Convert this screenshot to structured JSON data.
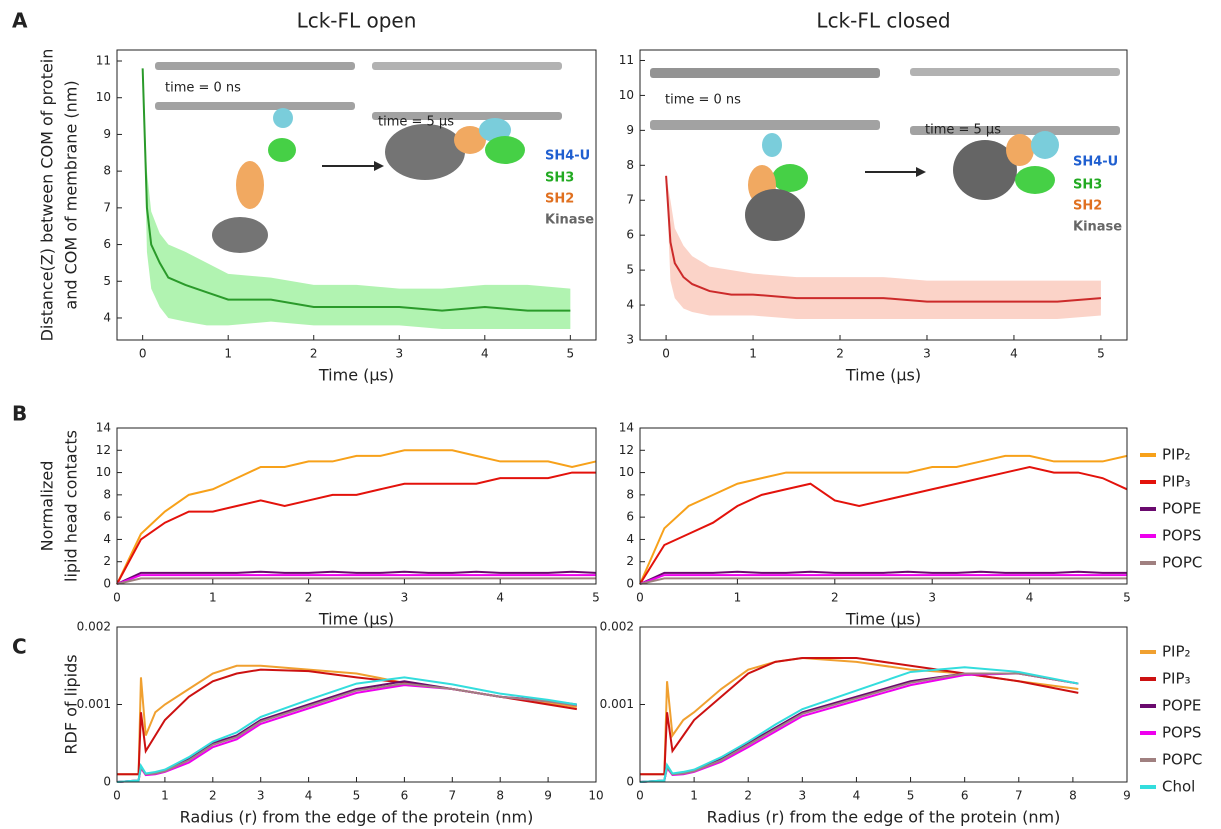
{
  "panel_labels": [
    "A",
    "B",
    "C"
  ],
  "chart_data": [
    {
      "type": "line",
      "title": "Lck-FL open",
      "xlabel": "Time (μs)",
      "ylabel": [
        "Distance(Z) between COM of protein",
        "and COM of membrane (nm)"
      ],
      "xlim": [
        -0.3,
        5.3
      ],
      "xticks": [
        0,
        1,
        2,
        3,
        4,
        5
      ],
      "ylim": [
        3.4,
        11.3
      ],
      "yticks": [
        4,
        5,
        6,
        7,
        8,
        9,
        10,
        11
      ],
      "x": [
        0,
        0.05,
        0.1,
        0.2,
        0.3,
        0.5,
        0.75,
        1,
        1.5,
        2,
        2.5,
        3,
        3.5,
        4,
        4.5,
        5
      ],
      "series": [
        {
          "color": "#2a9a2a",
          "band_color": "#90ee90",
          "values": [
            10.8,
            7.0,
            6.0,
            5.5,
            5.1,
            4.9,
            4.7,
            4.5,
            4.5,
            4.3,
            4.3,
            4.3,
            4.2,
            4.3,
            4.2,
            4.2
          ],
          "lower": [
            10.8,
            5.8,
            4.8,
            4.3,
            4.0,
            3.9,
            3.8,
            3.8,
            3.9,
            3.8,
            3.8,
            3.8,
            3.7,
            3.7,
            3.7,
            3.7
          ],
          "upper": [
            10.8,
            8.0,
            6.9,
            6.3,
            6.0,
            5.8,
            5.5,
            5.2,
            5.1,
            4.9,
            4.9,
            4.8,
            4.8,
            4.9,
            4.9,
            4.8
          ]
        }
      ],
      "annotations": [
        {
          "text": "time = 0 ns",
          "color": "#222"
        },
        {
          "text": "time = 5 μs",
          "color": "#222"
        },
        {
          "text": "SH4-U",
          "color": "#1f5fd0"
        },
        {
          "text": "SH3",
          "color": "#22aa22"
        },
        {
          "text": "SH2",
          "color": "#e07020"
        },
        {
          "text": "Kinase",
          "color": "#666666"
        }
      ]
    },
    {
      "type": "line",
      "title": "Lck-FL closed",
      "xlabel": "Time (μs)",
      "xlim": [
        -0.3,
        5.3
      ],
      "xticks": [
        0,
        1,
        2,
        3,
        4,
        5
      ],
      "ylim": [
        3,
        11.3
      ],
      "yticks": [
        3,
        4,
        5,
        6,
        7,
        8,
        9,
        10,
        11
      ],
      "x": [
        0,
        0.05,
        0.1,
        0.2,
        0.3,
        0.5,
        0.75,
        1,
        1.5,
        2,
        2.5,
        3,
        3.5,
        4,
        4.5,
        5
      ],
      "series": [
        {
          "color": "#cc2a2a",
          "band_color": "#f9c0b0",
          "values": [
            7.7,
            5.8,
            5.2,
            4.8,
            4.6,
            4.4,
            4.3,
            4.3,
            4.2,
            4.2,
            4.2,
            4.1,
            4.1,
            4.1,
            4.1,
            4.2
          ],
          "lower": [
            7.7,
            4.7,
            4.2,
            3.9,
            3.8,
            3.7,
            3.7,
            3.7,
            3.6,
            3.6,
            3.6,
            3.6,
            3.6,
            3.6,
            3.6,
            3.7
          ],
          "upper": [
            7.7,
            7.0,
            6.2,
            5.7,
            5.4,
            5.1,
            5.0,
            4.9,
            4.8,
            4.8,
            4.8,
            4.7,
            4.7,
            4.7,
            4.7,
            4.7
          ]
        }
      ],
      "annotations": [
        {
          "text": "time = 0 ns",
          "color": "#222"
        },
        {
          "text": "time = 5 μs",
          "color": "#222"
        },
        {
          "text": "SH4-U",
          "color": "#1f5fd0"
        },
        {
          "text": "SH3",
          "color": "#22aa22"
        },
        {
          "text": "SH2",
          "color": "#e07020"
        },
        {
          "text": "Kinase",
          "color": "#666666"
        }
      ]
    },
    {
      "type": "line",
      "xlabel": "Time (μs)",
      "ylabel": [
        "Normalized",
        "lipid head contacts"
      ],
      "xlim": [
        0,
        5
      ],
      "xticks": [
        0,
        1,
        2,
        3,
        4,
        5
      ],
      "ylim": [
        0,
        14
      ],
      "yticks": [
        0,
        2,
        4,
        6,
        8,
        10,
        12,
        14
      ],
      "x": [
        0,
        0.25,
        0.5,
        0.75,
        1,
        1.25,
        1.5,
        1.75,
        2,
        2.25,
        2.5,
        2.75,
        3,
        3.25,
        3.5,
        3.75,
        4,
        4.25,
        4.5,
        4.75,
        5
      ],
      "series": [
        {
          "color": "#f7a11a",
          "values": [
            0,
            4.5,
            6.5,
            8,
            8.5,
            9.5,
            10.5,
            10.5,
            11,
            11,
            11.5,
            11.5,
            12,
            12,
            12,
            11.5,
            11,
            11,
            11,
            10.5,
            11
          ]
        },
        {
          "color": "#e3120b",
          "values": [
            0,
            4,
            5.5,
            6.5,
            6.5,
            7,
            7.5,
            7,
            7.5,
            8,
            8,
            8.5,
            9,
            9,
            9,
            9,
            9.5,
            9.5,
            9.5,
            10,
            10
          ]
        },
        {
          "color": "#6a0a6e",
          "values": [
            0,
            1,
            1,
            1,
            1,
            1,
            1.1,
            1,
            1,
            1.1,
            1,
            1,
            1.1,
            1,
            1,
            1.1,
            1,
            1,
            1,
            1.1,
            1
          ]
        },
        {
          "color": "#ee00ee",
          "values": [
            0,
            0.8,
            0.8,
            0.8,
            0.8,
            0.8,
            0.8,
            0.8,
            0.8,
            0.8,
            0.8,
            0.8,
            0.8,
            0.8,
            0.8,
            0.8,
            0.8,
            0.8,
            0.8,
            0.8,
            0.8
          ]
        },
        {
          "color": "#a08080",
          "values": [
            0,
            0.5,
            0.5,
            0.5,
            0.5,
            0.5,
            0.5,
            0.5,
            0.5,
            0.5,
            0.5,
            0.5,
            0.5,
            0.5,
            0.5,
            0.5,
            0.5,
            0.5,
            0.5,
            0.5,
            0.5
          ]
        }
      ]
    },
    {
      "type": "line",
      "xlabel": "Time (μs)",
      "legend": "right",
      "xlim": [
        0,
        5
      ],
      "xticks": [
        0,
        1,
        2,
        3,
        4,
        5
      ],
      "ylim": [
        0,
        14
      ],
      "yticks": [
        0,
        2,
        4,
        6,
        8,
        10,
        12,
        14
      ],
      "x": [
        0,
        0.25,
        0.5,
        0.75,
        1,
        1.25,
        1.5,
        1.75,
        2,
        2.25,
        2.5,
        2.75,
        3,
        3.25,
        3.5,
        3.75,
        4,
        4.25,
        4.5,
        4.75,
        5
      ],
      "series": [
        {
          "name": "PIP₂",
          "color": "#f7a11a",
          "values": [
            0,
            5,
            7,
            8,
            9,
            9.5,
            10,
            10,
            10,
            10,
            10,
            10,
            10.5,
            10.5,
            11,
            11.5,
            11.5,
            11,
            11,
            11,
            11.5
          ]
        },
        {
          "name": "PIP₃",
          "color": "#e3120b",
          "values": [
            0,
            3.5,
            4.5,
            5.5,
            7,
            8,
            8.5,
            9,
            7.5,
            7,
            7.5,
            8,
            8.5,
            9,
            9.5,
            10,
            10.5,
            10,
            10,
            9.5,
            8.5
          ]
        },
        {
          "name": "POPE",
          "color": "#6a0a6e",
          "values": [
            0,
            1,
            1,
            1,
            1.1,
            1,
            1,
            1.1,
            1,
            1,
            1,
            1.1,
            1,
            1,
            1.1,
            1,
            1,
            1,
            1.1,
            1,
            1
          ]
        },
        {
          "name": "POPS",
          "color": "#ee00ee",
          "values": [
            0,
            0.8,
            0.8,
            0.8,
            0.8,
            0.8,
            0.8,
            0.8,
            0.8,
            0.8,
            0.8,
            0.8,
            0.8,
            0.8,
            0.8,
            0.8,
            0.8,
            0.8,
            0.8,
            0.8,
            0.8
          ]
        },
        {
          "name": "POPC",
          "color": "#a08080",
          "values": [
            0,
            0.5,
            0.5,
            0.5,
            0.5,
            0.5,
            0.5,
            0.5,
            0.5,
            0.5,
            0.5,
            0.5,
            0.5,
            0.5,
            0.5,
            0.5,
            0.5,
            0.5,
            0.5,
            0.5,
            0.5
          ]
        }
      ]
    },
    {
      "type": "line",
      "xlabel": "Radius (r) from the edge of the protein (nm)",
      "ylabel": [
        "RDF of lipids"
      ],
      "xlim": [
        0,
        10
      ],
      "xticks": [
        0,
        1,
        2,
        3,
        4,
        5,
        6,
        7,
        8,
        9,
        10
      ],
      "ylim": [
        0,
        0.002
      ],
      "yticks": [
        0,
        0.001,
        0.002
      ],
      "x": [
        0,
        0.45,
        0.5,
        0.6,
        0.8,
        1,
        1.5,
        2,
        2.5,
        3,
        4,
        5,
        6,
        7,
        8,
        9,
        9.6
      ],
      "series": [
        {
          "color": "#f0a030",
          "values": [
            0.0001,
            0.0001,
            0.00135,
            0.0006,
            0.0009,
            0.001,
            0.0012,
            0.0014,
            0.0015,
            0.0015,
            0.00145,
            0.0014,
            0.00128,
            0.0012,
            0.0011,
            0.00102,
            0.00097
          ]
        },
        {
          "color": "#cc1111",
          "values": [
            0.0001,
            0.0001,
            0.0009,
            0.0004,
            0.0006,
            0.0008,
            0.0011,
            0.0013,
            0.0014,
            0.00145,
            0.00143,
            0.00135,
            0.00128,
            0.0012,
            0.0011,
            0.001,
            0.00094
          ]
        },
        {
          "color": "#6a0a6e",
          "values": [
            0,
            2e-05,
            0.0002,
            0.0001,
            0.00012,
            0.00015,
            0.0003,
            0.0005,
            0.0006,
            0.0008,
            0.001,
            0.0012,
            0.0013,
            0.0012,
            0.0011,
            0.00105,
            0.001
          ]
        },
        {
          "color": "#ee00ee",
          "values": [
            0,
            2e-05,
            0.00018,
            9e-05,
            0.0001,
            0.00013,
            0.00025,
            0.00045,
            0.00055,
            0.00075,
            0.00095,
            0.00115,
            0.00125,
            0.0012,
            0.0011,
            0.00104,
            0.00099
          ]
        },
        {
          "color": "#a08080",
          "values": [
            0,
            2e-05,
            0.00019,
            0.0001,
            0.00011,
            0.00014,
            0.00028,
            0.00048,
            0.00058,
            0.00078,
            0.00098,
            0.00118,
            0.00127,
            0.0012,
            0.0011,
            0.00104,
            0.00099
          ]
        },
        {
          "color": "#33dddd",
          "values": [
            0,
            2e-05,
            0.00021,
            0.00011,
            0.00013,
            0.00016,
            0.00032,
            0.00052,
            0.00064,
            0.00084,
            0.00106,
            0.00127,
            0.00135,
            0.00126,
            0.00114,
            0.00106,
            0.001
          ]
        }
      ]
    },
    {
      "type": "line",
      "xlabel": "Radius (r) from the edge of the protein (nm)",
      "legend": "right",
      "xlim": [
        0,
        9
      ],
      "xticks": [
        0,
        1,
        2,
        3,
        4,
        5,
        6,
        7,
        8,
        9
      ],
      "ylim": [
        0,
        0.002
      ],
      "yticks": [
        0,
        0.001,
        0.002
      ],
      "x": [
        0,
        0.45,
        0.5,
        0.6,
        0.8,
        1,
        1.5,
        2,
        2.5,
        3,
        4,
        5,
        6,
        7,
        8.1
      ],
      "series": [
        {
          "name": "PIP₂",
          "color": "#f0a030",
          "values": [
            0.0001,
            0.0001,
            0.0013,
            0.0006,
            0.0008,
            0.0009,
            0.0012,
            0.00145,
            0.00155,
            0.0016,
            0.00155,
            0.00145,
            0.0014,
            0.0013,
            0.0012
          ]
        },
        {
          "name": "PIP₃",
          "color": "#cc1111",
          "values": [
            0.0001,
            0.0001,
            0.0009,
            0.0004,
            0.0006,
            0.0008,
            0.0011,
            0.0014,
            0.00155,
            0.0016,
            0.0016,
            0.0015,
            0.0014,
            0.0013,
            0.00115
          ]
        },
        {
          "name": "POPE",
          "color": "#6a0a6e",
          "values": [
            0,
            2e-05,
            0.0002,
            0.0001,
            0.00012,
            0.00015,
            0.0003,
            0.0005,
            0.0007,
            0.0009,
            0.0011,
            0.0013,
            0.0014,
            0.0014,
            0.00127
          ]
        },
        {
          "name": "POPS",
          "color": "#ee00ee",
          "values": [
            0,
            2e-05,
            0.00018,
            9e-05,
            0.0001,
            0.00013,
            0.00026,
            0.00045,
            0.00065,
            0.00085,
            0.00105,
            0.00125,
            0.00138,
            0.0014,
            0.00127
          ]
        },
        {
          "name": "POPC",
          "color": "#a08080",
          "values": [
            0,
            2e-05,
            0.00019,
            0.0001,
            0.00011,
            0.00014,
            0.00028,
            0.00048,
            0.00068,
            0.00088,
            0.00108,
            0.00128,
            0.0014,
            0.0014,
            0.00127
          ]
        },
        {
          "name": "Chol",
          "color": "#33dddd",
          "values": [
            0,
            2e-05,
            0.00022,
            0.00011,
            0.00013,
            0.00016,
            0.00032,
            0.00052,
            0.00074,
            0.00094,
            0.00118,
            0.00142,
            0.00148,
            0.00142,
            0.00127
          ]
        }
      ]
    }
  ]
}
